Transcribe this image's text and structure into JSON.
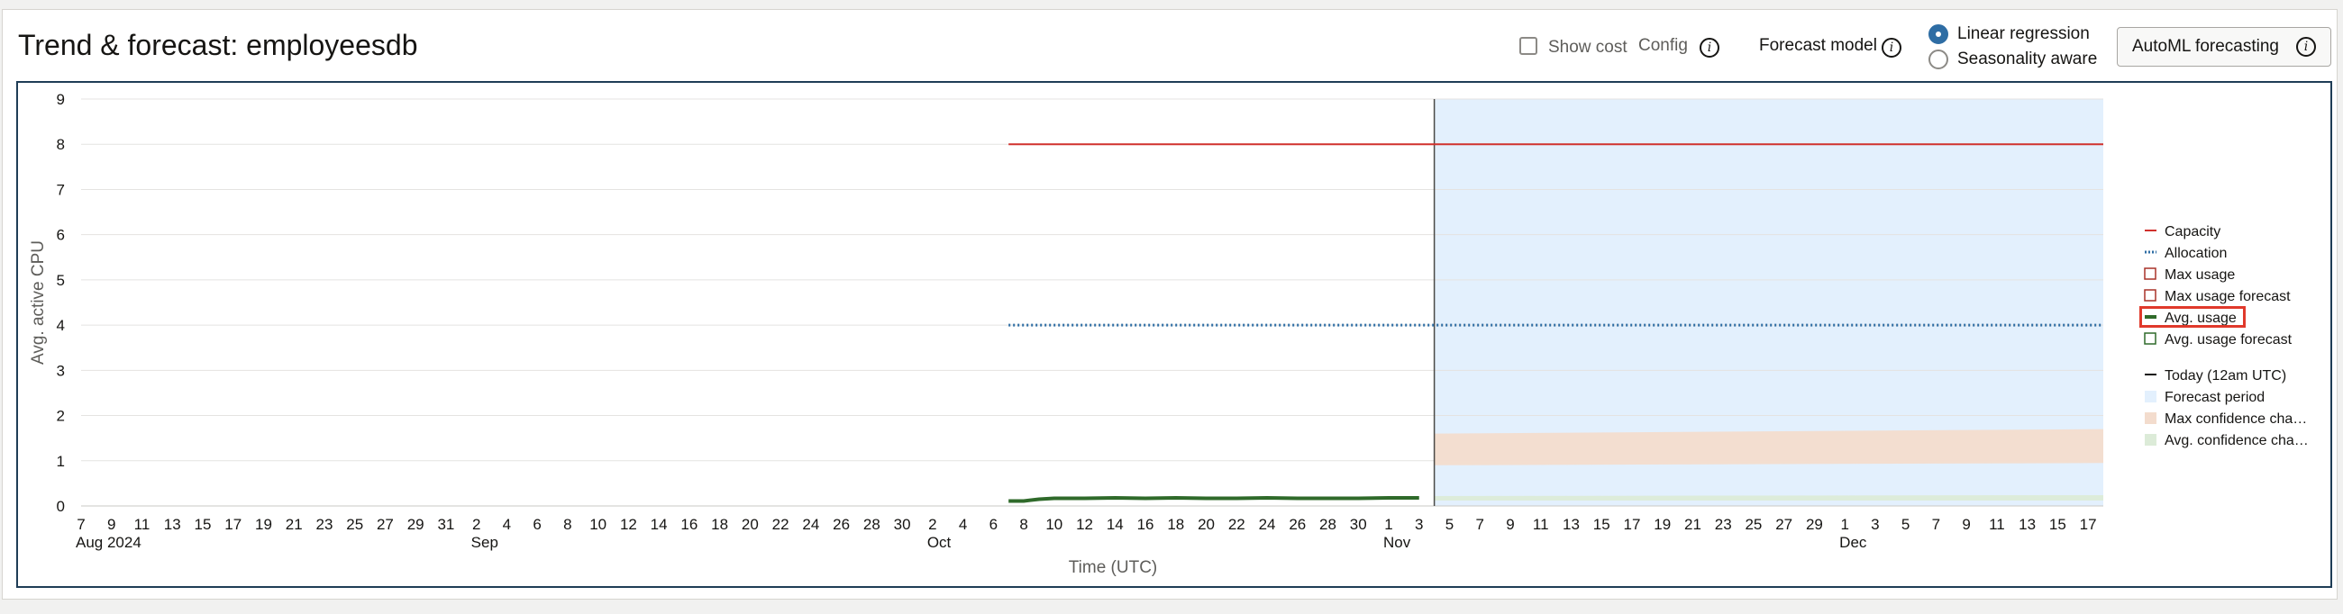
{
  "header": {
    "title": "Trend & forecast: employeesdb",
    "show_cost_label": "Show cost",
    "config_label": "Config",
    "forecast_model_label": "Forecast model",
    "forecast_options": [
      "Linear regression",
      "Seasonality aware"
    ],
    "forecast_selected": "Linear regression",
    "automl_button_label": "AutoML forecasting",
    "info_glyph": "i"
  },
  "chart_data": {
    "type": "line",
    "title": "",
    "xlabel": "Time (UTC)",
    "ylabel": "Avg. active CPU",
    "ylim": [
      0,
      9
    ],
    "yticks": [
      0,
      1,
      2,
      3,
      4,
      5,
      6,
      7,
      8,
      9
    ],
    "xlim": [
      "2024-08-07",
      "2024-12-18"
    ],
    "x_tick_labels": [
      "7",
      "9",
      "11",
      "13",
      "15",
      "17",
      "19",
      "21",
      "23",
      "25",
      "27",
      "29",
      "31",
      "2",
      "4",
      "6",
      "8",
      "10",
      "12",
      "14",
      "16",
      "18",
      "20",
      "22",
      "24",
      "26",
      "28",
      "30",
      "2",
      "4",
      "6",
      "8",
      "10",
      "12",
      "14",
      "16",
      "18",
      "20",
      "22",
      "24",
      "26",
      "28",
      "30",
      "1",
      "3",
      "5",
      "7",
      "9",
      "11",
      "13",
      "15",
      "17",
      "19",
      "21",
      "23",
      "25",
      "27",
      "29",
      "1",
      "3",
      "5",
      "7",
      "9",
      "11",
      "13",
      "15",
      "17"
    ],
    "x_month_labels": [
      {
        "label": "Aug 2024",
        "date": "2024-08-07"
      },
      {
        "label": "Sep",
        "date": "2024-09-02"
      },
      {
        "label": "Oct",
        "date": "2024-10-02"
      },
      {
        "label": "Nov",
        "date": "2024-11-01"
      },
      {
        "label": "Dec",
        "date": "2024-12-01"
      }
    ],
    "today": "2024-11-04",
    "forecast_period": [
      "2024-11-04",
      "2024-12-18"
    ],
    "series": [
      {
        "name": "Capacity",
        "style": "solid",
        "color": "#d0312d",
        "x": [
          "2024-10-07",
          "2024-12-18"
        ],
        "y": [
          8,
          8
        ]
      },
      {
        "name": "Allocation",
        "style": "dotted",
        "color": "#2e6da4",
        "x": [
          "2024-10-07",
          "2024-12-18"
        ],
        "y": [
          4,
          4
        ]
      },
      {
        "name": "Avg. usage",
        "style": "solid",
        "color": "#2f6a2a",
        "x": [
          "2024-10-07",
          "2024-10-08",
          "2024-10-09",
          "2024-10-10",
          "2024-10-12",
          "2024-10-14",
          "2024-10-16",
          "2024-10-18",
          "2024-10-20",
          "2024-10-22",
          "2024-10-24",
          "2024-10-26",
          "2024-10-28",
          "2024-10-30",
          "2024-11-01",
          "2024-11-03"
        ],
        "y": [
          0.11,
          0.11,
          0.15,
          0.17,
          0.17,
          0.18,
          0.17,
          0.18,
          0.17,
          0.17,
          0.18,
          0.17,
          0.17,
          0.17,
          0.18,
          0.18
        ]
      }
    ],
    "bands": [
      {
        "name": "Max confidence cha…",
        "color": "#f3dccd",
        "x": [
          "2024-11-04",
          "2024-12-18"
        ],
        "low": [
          0.9,
          0.95
        ],
        "high": [
          1.6,
          1.7
        ]
      },
      {
        "name": "Avg. confidence cha…",
        "color": "#dcebd8",
        "x": [
          "2024-11-04",
          "2024-12-18"
        ],
        "low": [
          0.12,
          0.12
        ],
        "high": [
          0.22,
          0.24
        ]
      }
    ],
    "legend_position": "right",
    "legend": [
      {
        "label": "Capacity",
        "symbol": "line",
        "color": "#d0312d"
      },
      {
        "label": "Allocation",
        "symbol": "dotted",
        "color": "#2e6da4"
      },
      {
        "label": "Max usage",
        "symbol": "box",
        "color": "#a83228"
      },
      {
        "label": "Max usage forecast",
        "symbol": "box",
        "color": "#a83228"
      },
      {
        "label": "Avg. usage",
        "symbol": "thick-line",
        "color": "#2f6a2a",
        "highlighted": true
      },
      {
        "label": "Avg. usage forecast",
        "symbol": "box",
        "color": "#2f6a2a"
      },
      {
        "label": "Today (12am UTC)",
        "symbol": "line",
        "color": "#161513"
      },
      {
        "label": "Forecast period",
        "symbol": "fill",
        "color": "#e3f0fd"
      },
      {
        "label": "Max confidence cha…",
        "symbol": "fill",
        "color": "#f3dccd"
      },
      {
        "label": "Avg. confidence cha…",
        "symbol": "fill",
        "color": "#dcebd8"
      }
    ],
    "grid": true
  }
}
